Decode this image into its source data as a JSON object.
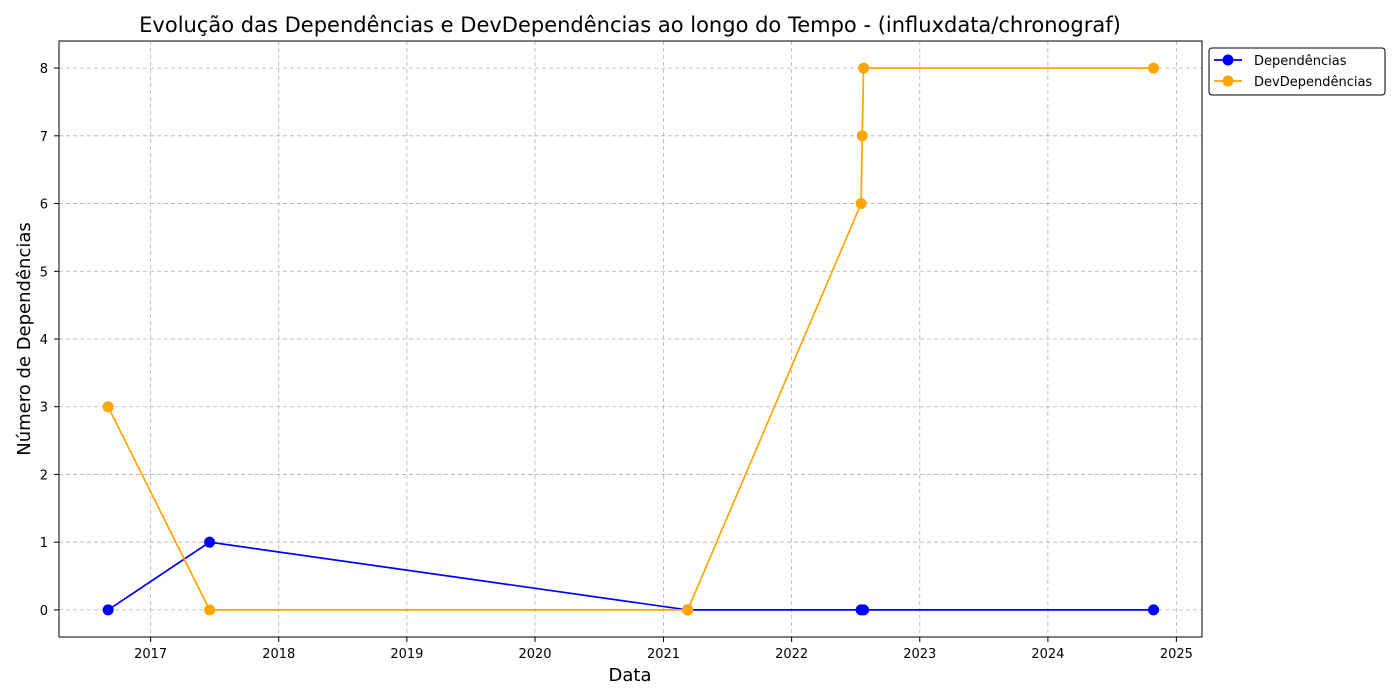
{
  "chart_data": {
    "type": "line",
    "title": "Evolução das Dependências e DevDependências ao longo do Tempo - (influxdata/chronograf)",
    "xlabel": "Data",
    "ylabel": "Número de Dependências",
    "xlim": [
      "2016-04-15",
      "2025-03-15"
    ],
    "ylim": [
      -0.4,
      8.4
    ],
    "x_ticks": [
      "2017",
      "2018",
      "2019",
      "2020",
      "2021",
      "2022",
      "2023",
      "2024",
      "2025"
    ],
    "y_ticks": [
      "0",
      "1",
      "2",
      "3",
      "4",
      "5",
      "6",
      "7",
      "8"
    ],
    "grid": true,
    "legend_position": "outside-top-right",
    "series": [
      {
        "name": "Dependências",
        "color": "#0000ff",
        "points": [
          {
            "x": "2016-09-02",
            "y": 0
          },
          {
            "x": "2017-06-18",
            "y": 1
          },
          {
            "x": "2021-03-11",
            "y": 0
          },
          {
            "x": "2022-07-18",
            "y": 0
          },
          {
            "x": "2022-07-25",
            "y": 0
          },
          {
            "x": "2024-10-28",
            "y": 0
          }
        ]
      },
      {
        "name": "DevDependências",
        "color": "#ffa500",
        "points": [
          {
            "x": "2016-09-02",
            "y": 3
          },
          {
            "x": "2017-06-18",
            "y": 0
          },
          {
            "x": "2021-03-11",
            "y": 0
          },
          {
            "x": "2022-07-18",
            "y": 6
          },
          {
            "x": "2022-07-21",
            "y": 7
          },
          {
            "x": "2022-07-25",
            "y": 8
          },
          {
            "x": "2024-10-28",
            "y": 8
          }
        ]
      }
    ]
  }
}
